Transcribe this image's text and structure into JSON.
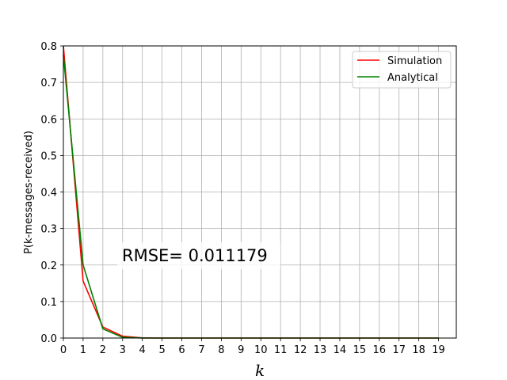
{
  "chart_data": {
    "type": "line",
    "title": "",
    "xlabel": "k",
    "ylabel": "P(k-messages-received)",
    "xlim": [
      0,
      19
    ],
    "ylim": [
      0,
      0.8
    ],
    "x": [
      0,
      1,
      2,
      3,
      4,
      5,
      6,
      7,
      8,
      9,
      10,
      11,
      12,
      13,
      14,
      15,
      16,
      17,
      18,
      19
    ],
    "x_ticks": [
      "0",
      "1",
      "2",
      "3",
      "4",
      "5",
      "6",
      "7",
      "8",
      "9",
      "10",
      "11",
      "12",
      "13",
      "14",
      "15",
      "16",
      "17",
      "18",
      "19"
    ],
    "y_ticks": [
      "0.0",
      "0.1",
      "0.2",
      "0.3",
      "0.4",
      "0.5",
      "0.6",
      "0.7",
      "0.8"
    ],
    "y_tick_values": [
      0,
      0.1,
      0.2,
      0.3,
      0.4,
      0.5,
      0.6,
      0.7,
      0.8
    ],
    "grid": true,
    "legend_position": "top-right",
    "series": [
      {
        "name": "Simulation",
        "color": "#ff0000",
        "values": [
          0.8,
          0.156,
          0.03,
          0.005,
          0.0005,
          0,
          0,
          0,
          0,
          0,
          0,
          0,
          0,
          0,
          0,
          0,
          0,
          0,
          0,
          0
        ]
      },
      {
        "name": "Analytical",
        "color": "#008000",
        "values": [
          0.775,
          0.2,
          0.025,
          0.002,
          0.0002,
          0,
          0,
          0,
          0,
          0,
          0,
          0,
          0,
          0,
          0,
          0,
          0,
          0,
          0,
          0
        ]
      }
    ],
    "annotation": "RMSE= 0.011179"
  }
}
